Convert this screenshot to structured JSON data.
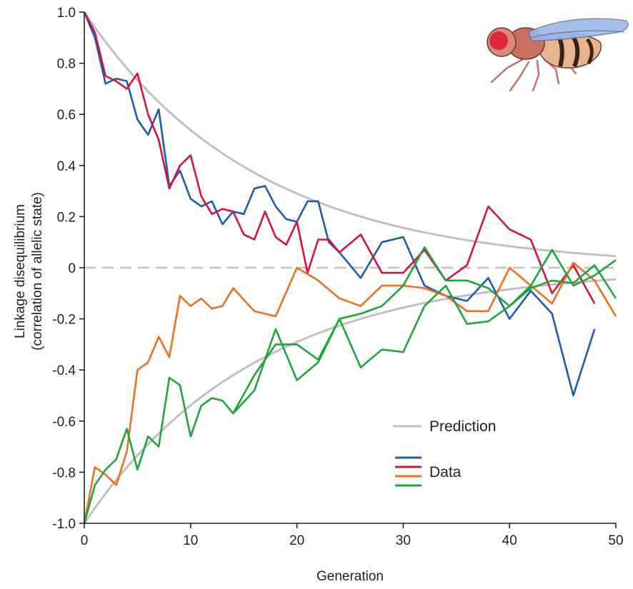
{
  "chart_data": {
    "type": "line",
    "xlabel": "Generation",
    "ylabel_line1": "Linkage disequilibrium",
    "ylabel_line2": "(correlation of allelic state)",
    "xlim": [
      0,
      50
    ],
    "ylim": [
      -1.0,
      1.0
    ],
    "x_ticks": [
      0,
      10,
      20,
      30,
      40,
      50
    ],
    "x_tick_labels": [
      "0",
      "10",
      "20",
      "30",
      "40",
      "50"
    ],
    "y_ticks": [
      -1.0,
      -0.8,
      -0.6,
      -0.4,
      -0.2,
      0,
      0.2,
      0.4,
      0.6,
      0.8,
      1.0
    ],
    "y_tick_labels": [
      "-1.0",
      "-0.8",
      "-0.6",
      "-0.4",
      "-0.2",
      "0",
      "0.2",
      "0.4",
      "0.6",
      "0.8",
      "1.0"
    ],
    "zero_line": "dashed",
    "legend": [
      {
        "label": "Prediction",
        "colors": [
          "#c8bdbd"
        ]
      },
      {
        "label": "Data",
        "colors": [
          "#1f5bb0",
          "#d5133c",
          "#ee6f1e",
          "#1fa53c"
        ]
      }
    ],
    "prediction": {
      "color": "#c8bdbd",
      "formula": "y = ±0.94^x",
      "decay_per_generation": 0.94
    },
    "series": [
      {
        "color": "#1f5bb0",
        "x": [
          0,
          1,
          2,
          3,
          4,
          5,
          6,
          7,
          8,
          9,
          10,
          11,
          12,
          13,
          14,
          15,
          16,
          17,
          18,
          19,
          20,
          21,
          22,
          23,
          24,
          26,
          28,
          30,
          32,
          34,
          36,
          38,
          40,
          42,
          44,
          46,
          48
        ],
        "values": [
          1.0,
          0.9,
          0.72,
          0.74,
          0.73,
          0.58,
          0.52,
          0.62,
          0.32,
          0.38,
          0.27,
          0.24,
          0.26,
          0.17,
          0.22,
          0.21,
          0.31,
          0.32,
          0.24,
          0.19,
          0.18,
          0.26,
          0.26,
          0.1,
          0.06,
          -0.04,
          0.1,
          0.12,
          -0.07,
          -0.11,
          -0.13,
          -0.04,
          -0.2,
          -0.09,
          -0.18,
          -0.5,
          -0.24
        ]
      },
      {
        "color": "#d5133c",
        "x": [
          0,
          1,
          2,
          3,
          4,
          5,
          6,
          7,
          8,
          9,
          10,
          11,
          12,
          13,
          14,
          15,
          16,
          17,
          18,
          19,
          20,
          21,
          22,
          23,
          24,
          26,
          28,
          30,
          32,
          34,
          36,
          38,
          40,
          42,
          44,
          46,
          48
        ],
        "values": [
          1.0,
          0.92,
          0.75,
          0.73,
          0.7,
          0.76,
          0.6,
          0.5,
          0.31,
          0.4,
          0.44,
          0.28,
          0.21,
          0.23,
          0.22,
          0.13,
          0.11,
          0.22,
          0.12,
          0.09,
          0.18,
          -0.02,
          0.11,
          0.11,
          0.06,
          0.13,
          -0.02,
          -0.02,
          0.07,
          -0.05,
          0.01,
          0.24,
          0.15,
          0.11,
          -0.1,
          0.01,
          -0.14
        ]
      },
      {
        "color": "#ee6f1e",
        "x": [
          0,
          1,
          2,
          3,
          4,
          5,
          6,
          7,
          8,
          9,
          10,
          11,
          12,
          13,
          14,
          16,
          18,
          20,
          22,
          24,
          26,
          28,
          30,
          32,
          34,
          36,
          38,
          40,
          42,
          44,
          46,
          48,
          50
        ],
        "values": [
          -1.0,
          -0.78,
          -0.81,
          -0.85,
          -0.72,
          -0.4,
          -0.37,
          -0.27,
          -0.35,
          -0.11,
          -0.15,
          -0.12,
          -0.16,
          -0.15,
          -0.08,
          -0.17,
          -0.19,
          0.0,
          -0.05,
          -0.12,
          -0.15,
          -0.07,
          -0.07,
          -0.08,
          -0.11,
          -0.17,
          -0.17,
          0.0,
          -0.07,
          -0.14,
          0.02,
          -0.05,
          -0.19
        ]
      },
      {
        "color": "#1fa53c",
        "x": [
          0,
          1,
          2,
          3,
          4,
          5,
          6,
          7,
          8,
          9,
          10,
          11,
          12,
          13,
          14,
          16,
          18,
          20,
          22,
          24,
          26,
          28,
          30,
          32,
          34,
          36,
          38,
          40,
          42,
          44,
          46,
          48,
          50
        ],
        "values": [
          -1.0,
          -0.85,
          -0.79,
          -0.75,
          -0.63,
          -0.79,
          -0.66,
          -0.7,
          -0.43,
          -0.46,
          -0.66,
          -0.54,
          -0.51,
          -0.52,
          -0.57,
          -0.48,
          -0.24,
          -0.44,
          -0.37,
          -0.2,
          -0.39,
          -0.32,
          -0.33,
          -0.15,
          -0.07,
          -0.22,
          -0.21,
          -0.15,
          -0.07,
          0.07,
          -0.07,
          -0.03,
          0.03
        ]
      },
      {
        "color": "#1fa53c",
        "x": [
          14,
          16,
          18,
          20,
          22,
          24,
          26,
          28,
          30,
          32,
          34,
          36,
          38,
          40,
          42,
          44,
          46,
          48,
          50
        ],
        "values": [
          -0.57,
          -0.42,
          -0.3,
          -0.3,
          -0.36,
          -0.2,
          -0.18,
          -0.15,
          -0.07,
          0.08,
          -0.05,
          -0.05,
          -0.08,
          -0.15,
          -0.08,
          -0.05,
          -0.06,
          0.01,
          -0.12
        ]
      }
    ]
  }
}
